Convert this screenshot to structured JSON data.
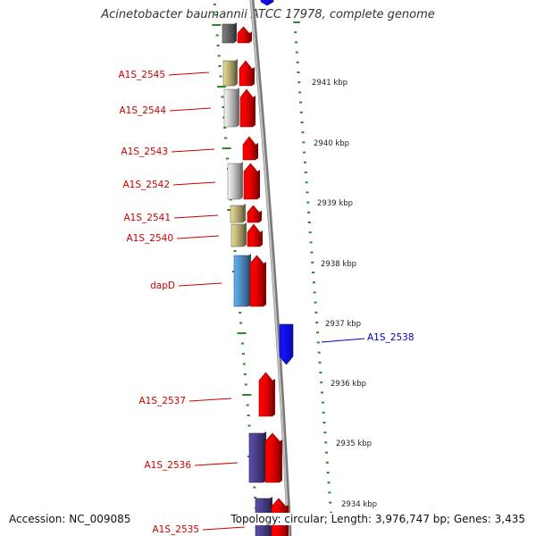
{
  "title": "Acinetobacter baumannii ATCC 17978, complete genome",
  "accession_text": "Accession: NC_009085",
  "topology_text": "Topology: circular; Length: 3,976,747 bp; Genes: 3,435",
  "colors": {
    "forward_cds": "#ee0000",
    "reverse_cds": "#1010ee",
    "forward_label": "#cc0000",
    "reverse_label": "#0000cc",
    "backbone": "#999999",
    "tick": "#2a8a2a",
    "gene_olive": "#bdb277",
    "gene_grey": "#c8c8c8",
    "gene_steelblue": "#4f8ec4",
    "gene_navy": "#4a3f8c",
    "gene_dark": "#666666"
  },
  "scale_labels": [
    "2941 kbp",
    "2940 kbp",
    "2939 kbp",
    "2938 kbp",
    "2937 kbp",
    "2936 kbp",
    "2935 kbp",
    "2934 kbp"
  ],
  "gene_labels": [
    {
      "text": "A1S_2545",
      "strand": "forward"
    },
    {
      "text": "A1S_2544",
      "strand": "forward"
    },
    {
      "text": "A1S_2543",
      "strand": "forward"
    },
    {
      "text": "A1S_2542",
      "strand": "forward"
    },
    {
      "text": "A1S_2541",
      "strand": "forward"
    },
    {
      "text": "A1S_2540",
      "strand": "forward"
    },
    {
      "text": "dapD",
      "strand": "forward"
    },
    {
      "text": "A1S_2538",
      "strand": "reverse"
    },
    {
      "text": "A1S_2537",
      "strand": "forward"
    },
    {
      "text": "A1S_2536",
      "strand": "forward"
    },
    {
      "text": "A1S_2535",
      "strand": "forward"
    }
  ]
}
